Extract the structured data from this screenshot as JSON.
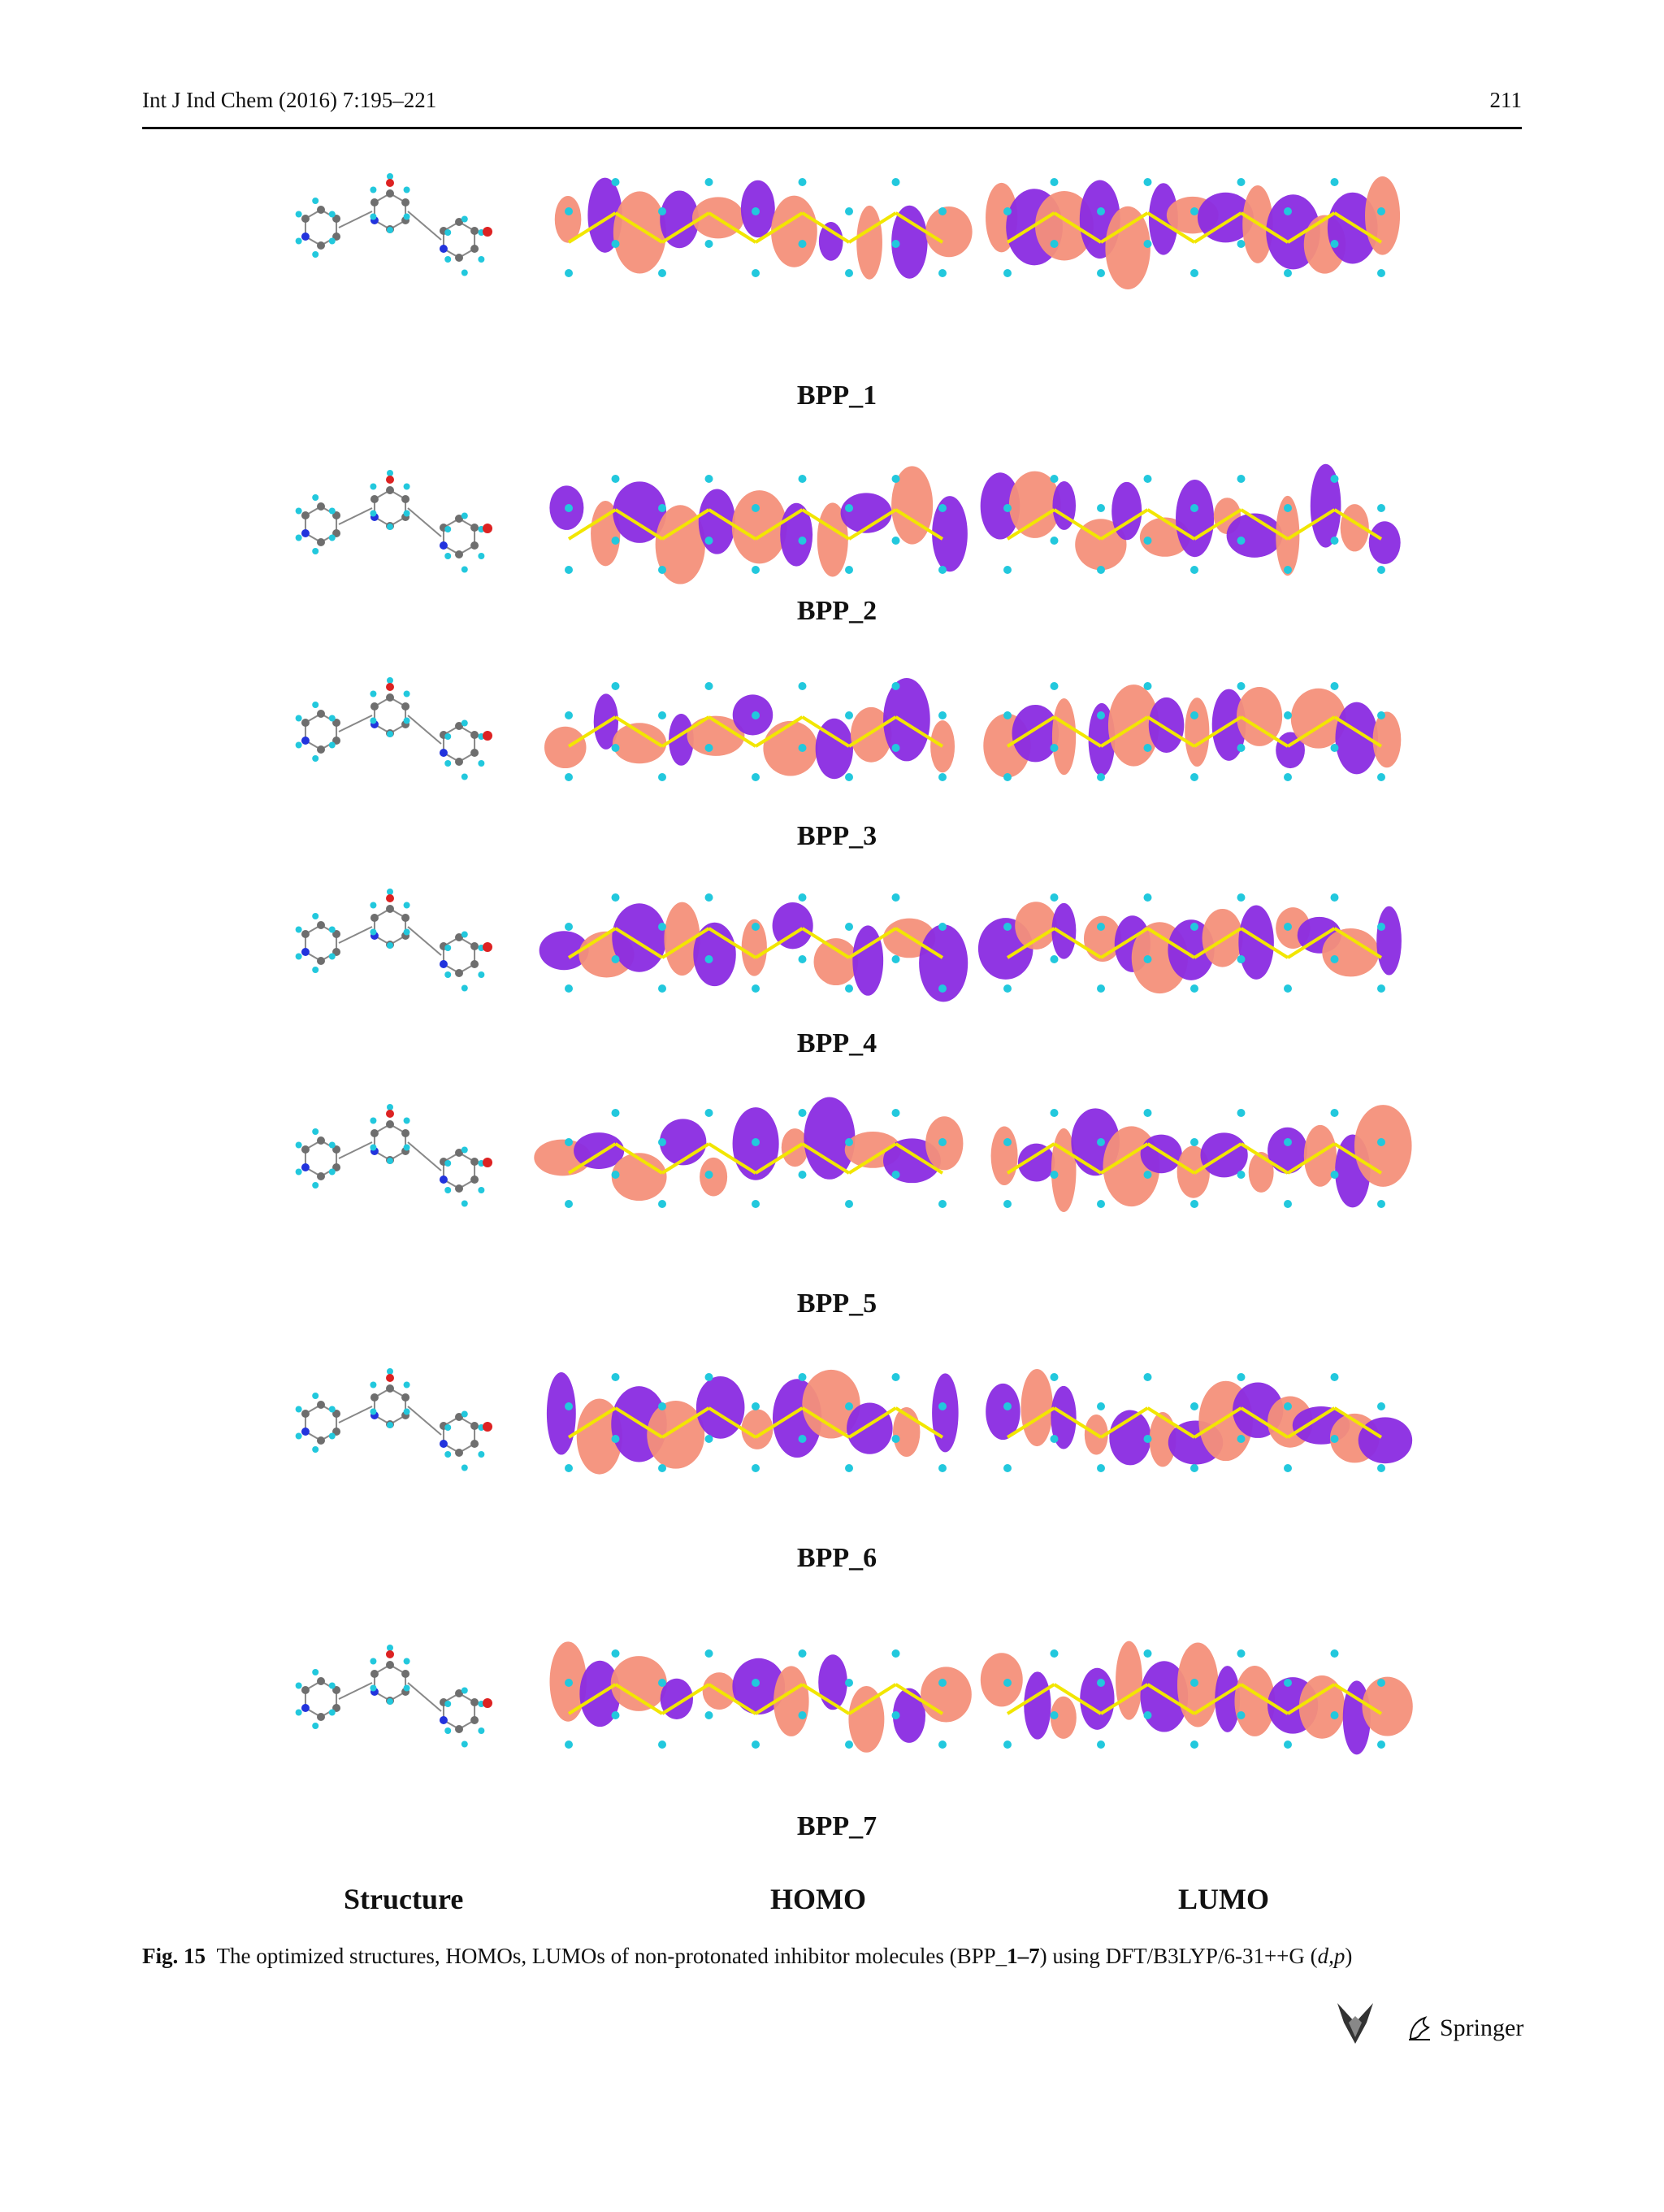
{
  "header": {
    "journal_ref": "Int J Ind Chem (2016) 7:195–221",
    "page_number": "211"
  },
  "figure": {
    "rows": [
      {
        "label": "BPP_1"
      },
      {
        "label": "BPP_2"
      },
      {
        "label": "BPP_3"
      },
      {
        "label": "BPP_4"
      },
      {
        "label": "BPP_5"
      },
      {
        "label": "BPP_6"
      },
      {
        "label": "BPP_7"
      }
    ],
    "column_headings": {
      "structure": "Structure",
      "homo": "HOMO",
      "lumo": "LUMO"
    },
    "colors": {
      "orbital_positive": "#f4907a",
      "orbital_negative": "#8a2be2",
      "bond_yellow": "#f2e600",
      "atom_hydrogen": "#22c8dd",
      "atom_carbon": "#6e6e6e",
      "atom_nitrogen": "#2233dd",
      "atom_oxygen": "#dd2222"
    }
  },
  "caption": {
    "fig_label": "Fig. 15",
    "text_before": "The optimized structures, HOMOs, LUMOs of non-protonated inhibitor molecules (BPP_",
    "range_bold": "1–7",
    "text_middle": ") using DFT/B3LYP/6-31++G (",
    "basis_italic": "d,p",
    "text_after": ")"
  },
  "footer": {
    "publisher": "Springer"
  }
}
